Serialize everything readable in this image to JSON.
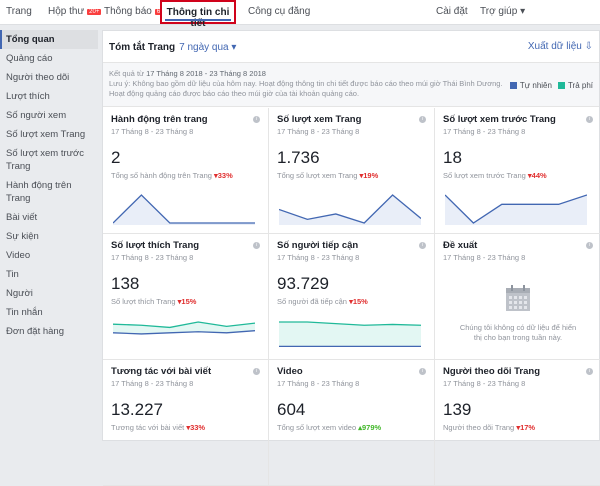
{
  "nav": {
    "page": "Trang",
    "inbox": "Hộp thư",
    "inbox_badge": "20+",
    "notifications": "Thông báo",
    "notifications_badge": "6",
    "insights": "Thông tin chi tiết",
    "publishing_tools": "Công cụ đăng",
    "settings": "Cài đặt",
    "help": "Trợ giúp ▾"
  },
  "sidebar": {
    "items": [
      "Tổng quan",
      "Quảng cáo",
      "Người theo dõi",
      "Lượt thích",
      "Số người xem",
      "Số lượt xem Trang",
      "Số lượt xem trước Trang",
      "Hành động trên Trang",
      "Bài viết",
      "Sự kiện",
      "Video",
      "Tin",
      "Người",
      "Tin nhắn",
      "Đơn đặt hàng"
    ]
  },
  "header": {
    "title": "Tóm tắt Trang",
    "range": "7 ngày qua ▾",
    "export": "Xuất dữ liệu ⇩"
  },
  "info": {
    "results_prefix": "Kết quả từ",
    "results_range": "17 Tháng 8 2018 - 23 Tháng 8 2018",
    "note1": "Lưu ý: Không bao gồm dữ liệu của hôm nay. Hoạt động thông tin chi tiết được báo cáo theo múi giờ Thái Bình Dương.",
    "note2": "Hoạt động quảng cáo được báo cáo theo múi giờ của tài khoản quảng cáo."
  },
  "legend": {
    "organic": "Tự nhiên",
    "paid": "Trả phí",
    "organic_color": "#4267b2",
    "paid_color": "#20b999"
  },
  "cards": [
    {
      "title": "Hành động trên trang",
      "date": "17 Tháng 8 - 23 Tháng 8",
      "value": "2",
      "sub": "Tổng số hành động trên Trang",
      "change": "▾33%",
      "dir": "down",
      "series": [
        [
          0,
          2,
          0,
          0,
          0,
          0
        ]
      ]
    },
    {
      "title": "Số lượt xem Trang",
      "date": "17 Tháng 8 - 23 Tháng 8",
      "value": "1.736",
      "sub": "Tổng số lượt xem Trang",
      "change": "▾19%",
      "dir": "down",
      "series": [
        [
          290,
          180,
          240,
          140,
          450,
          190
        ]
      ]
    },
    {
      "title": "Số lượt xem trước Trang",
      "date": "17 Tháng 8 - 23 Tháng 8",
      "value": "18",
      "sub": "Số lượt xem trước Trang",
      "change": "▾44%",
      "dir": "down",
      "series": [
        [
          4,
          1,
          3,
          3,
          3,
          4
        ]
      ]
    },
    {
      "title": "Số lượt thích Trang",
      "date": "17 Tháng 8 - 23 Tháng 8",
      "value": "138",
      "sub": "Số lượt thích Trang",
      "change": "▾15%",
      "dir": "down",
      "series": [
        [
          22,
          21,
          19,
          24,
          20,
          23
        ],
        [
          14,
          13,
          14,
          15,
          14,
          16
        ]
      ]
    },
    {
      "title": "Số người tiếp cận",
      "date": "17 Tháng 8 - 23 Tháng 8",
      "value": "93.729",
      "sub": "Số người đã tiếp cận",
      "change": "▾15%",
      "dir": "down",
      "series": [
        [
          16,
          16,
          15,
          14,
          14.5,
          14
        ],
        [
          1,
          1,
          1,
          1,
          1,
          1
        ]
      ]
    },
    {
      "title": "Đề xuất",
      "date": "17 Tháng 8 - 23 Tháng 8",
      "empty": "Chúng tôi không có dữ liệu để hiển thị cho bạn trong tuần này."
    },
    {
      "title": "Tương tác với bài viết",
      "date": "17 Tháng 8 - 23 Tháng 8",
      "value": "13.227",
      "sub": "Tương tác với bài viết",
      "change": "▾33%",
      "dir": "down"
    },
    {
      "title": "Video",
      "date": "17 Tháng 8 - 23 Tháng 8",
      "value": "604",
      "sub": "Tổng số lượt xem video",
      "change": "▴979%",
      "dir": "up"
    },
    {
      "title": "Người theo dõi Trang",
      "date": "17 Tháng 8 - 23 Tháng 8",
      "value": "139",
      "sub": "Người theo dõi Trang",
      "change": "▾17%",
      "dir": "down"
    }
  ]
}
